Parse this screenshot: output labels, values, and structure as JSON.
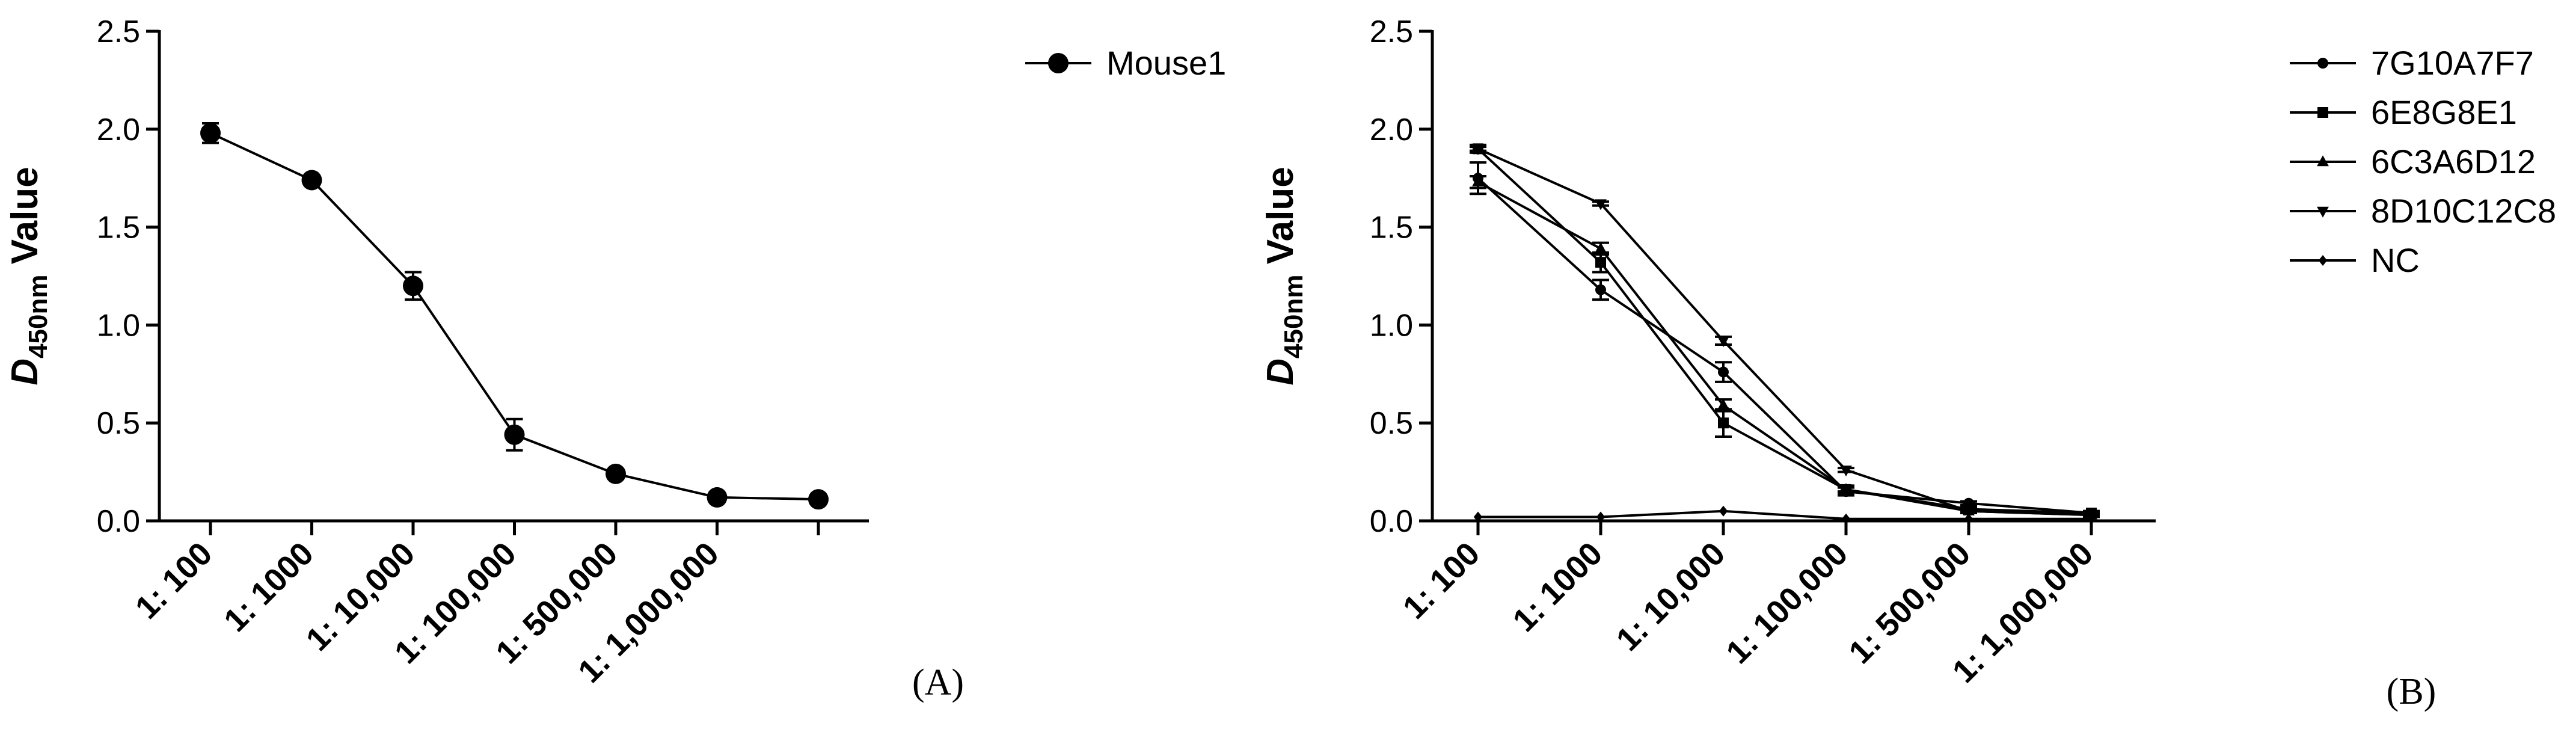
{
  "chart_data": [
    {
      "type": "line",
      "panel_label": "(A)",
      "ylabel": {
        "main": "D",
        "sub": "450nm",
        "tail": " Value"
      },
      "ylim": [
        0,
        2.5
      ],
      "yticks": [
        "0.0",
        "0.5",
        "1.0",
        "1.5",
        "2.0",
        "2.5"
      ],
      "categories": [
        "1: 100",
        "1: 1000",
        "1: 10,000",
        "1: 100,000",
        "1: 500,000",
        "1: 1,000,000",
        ""
      ],
      "legend_position": "top-right",
      "series": [
        {
          "name": "Mouse1",
          "marker": "circle",
          "values": [
            1.98,
            1.74,
            1.2,
            0.44,
            0.24,
            0.12,
            0.11
          ],
          "errors": [
            0.05,
            0.02,
            0.07,
            0.08,
            0.02,
            0.01,
            0.01
          ]
        }
      ]
    },
    {
      "type": "line",
      "panel_label": "(B)",
      "ylabel": {
        "main": "D",
        "sub": "450nm",
        "tail": " Value"
      },
      "ylim": [
        0,
        2.5
      ],
      "yticks": [
        "0.0",
        "0.5",
        "1.0",
        "1.5",
        "2.0",
        "2.5"
      ],
      "categories": [
        "1: 100",
        "1: 1000",
        "1: 10,000",
        "1: 100,000",
        "1: 500,000",
        "1: 1,000,000"
      ],
      "legend_position": "top-right",
      "series": [
        {
          "name": "7G10A7F7",
          "marker": "circle",
          "values": [
            1.75,
            1.18,
            0.76,
            0.15,
            0.09,
            0.04
          ],
          "errors": [
            0.08,
            0.05,
            0.05,
            0.02,
            0.01,
            0.01
          ]
        },
        {
          "name": "6E8G8E1",
          "marker": "square",
          "values": [
            1.9,
            1.32,
            0.5,
            0.16,
            0.06,
            0.04
          ],
          "errors": [
            0.02,
            0.05,
            0.07,
            0.02,
            0.01,
            0.01
          ]
        },
        {
          "name": "6C3A6D12",
          "marker": "triangle-up",
          "values": [
            1.73,
            1.39,
            0.59,
            0.16,
            0.05,
            0.03
          ],
          "errors": [
            0.03,
            0.03,
            0.03,
            0.01,
            0.01,
            0.01
          ]
        },
        {
          "name": "8D10C12C8",
          "marker": "triangle-down",
          "values": [
            1.9,
            1.62,
            0.92,
            0.26,
            0.05,
            0.03
          ],
          "errors": [
            0.01,
            0.01,
            0.02,
            0.01,
            0.01,
            0.01
          ]
        },
        {
          "name": "NC",
          "marker": "diamond",
          "values": [
            0.02,
            0.02,
            0.05,
            0.01,
            0.01,
            0.01
          ],
          "errors": [
            0,
            0,
            0,
            0,
            0,
            0
          ]
        }
      ]
    }
  ]
}
